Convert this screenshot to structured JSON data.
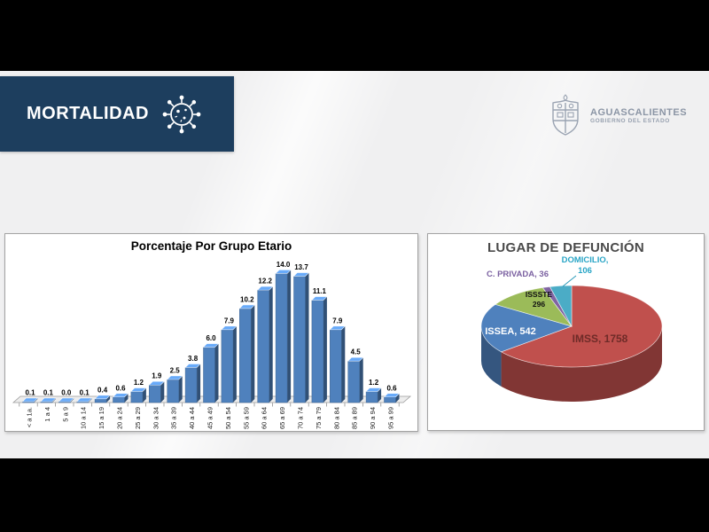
{
  "header": {
    "title": "MORTALIDAD",
    "logo": {
      "title": "AGUASCALIENTES",
      "subtitle": "GOBIERNO DEL ESTADO"
    }
  },
  "colors": {
    "banner_navy": "#1d3e5e",
    "bar_blue": "#4f81bd",
    "pie_red": "#c0504d",
    "pie_blue": "#4f81bd",
    "pie_green": "#9bbb59",
    "pie_purple": "#8064a2",
    "pie_cyan": "#4bacc6"
  },
  "chart_data": [
    {
      "type": "bar",
      "title": "Porcentaje Por Grupo Etario",
      "categories": [
        "< a 1a.",
        "1 a 4",
        "5 a 9",
        "10 a 14",
        "15 a 19",
        "20 a 24",
        "25 a 29",
        "30 a 34",
        "35 a 39",
        "40 a 44",
        "45 a 49",
        "50 a 54",
        "55 a 59",
        "60 a 64",
        "65 a 69",
        "70 a 74",
        "75 a 79",
        "80 a 84",
        "85 a 89",
        "90 a 94",
        "95 a 99"
      ],
      "values": [
        0.1,
        0.1,
        0.0,
        0.1,
        0.4,
        0.6,
        1.2,
        1.9,
        2.5,
        3.8,
        6.0,
        7.9,
        10.2,
        12.2,
        14.0,
        13.7,
        11.1,
        7.9,
        4.5,
        1.2,
        0.6
      ],
      "xlabel": "",
      "ylabel": "",
      "ylim": [
        0,
        14
      ],
      "grid": false,
      "legend": false,
      "bar_color": "#4f81bd",
      "style": "3d"
    },
    {
      "type": "pie",
      "title": "LUGAR DE DEFUNCIÓN",
      "series": [
        {
          "name": "IMSS",
          "value": 1758,
          "color": "#c0504d"
        },
        {
          "name": "ISSEA",
          "value": 542,
          "color": "#4f81bd"
        },
        {
          "name": "ISSSTE",
          "value": 296,
          "color": "#9bbb59"
        },
        {
          "name": "C. PRIVADA",
          "value": 36,
          "color": "#8064a2"
        },
        {
          "name": "DOMICILIO",
          "value": 106,
          "color": "#4bacc6"
        }
      ],
      "start_angle_deg": 0,
      "direction": "clockwise",
      "legend": false,
      "style": "3d"
    }
  ],
  "pie_labels": {
    "imss": "IMSS, 1758",
    "issea": "ISSEA, 542",
    "issste_line1": "ISSSTE",
    "issste_line2": "296",
    "cprivada": "C. PRIVADA, 36",
    "domicilio_line1": "DOMICILIO,",
    "domicilio_line2": "106"
  }
}
